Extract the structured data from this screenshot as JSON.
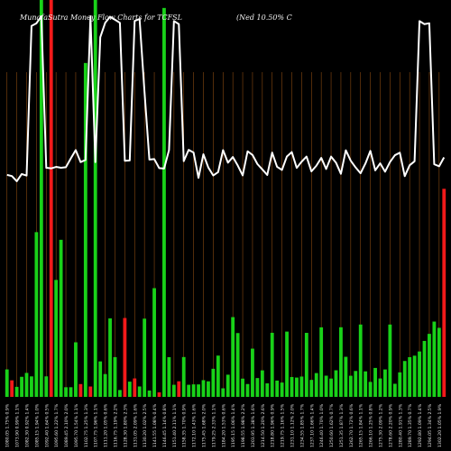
{
  "chart_data": {
    "type": "bar",
    "title_left": "MunafaSutra  Money Flow  Charts for TCFSL",
    "title_right": "(Ned 10.50% C",
    "bar_colors": {
      "green": "#19d219",
      "red": "#f21a1a"
    },
    "line_color": "#ffffff",
    "grid_color": "#8a4a10",
    "background": "#000000",
    "flow_ylim": [
      0,
      100
    ],
    "price_ylim": [
      0,
      100
    ],
    "categories": [
      "2024-02-28",
      "2024-02-29",
      "2024-03-01",
      "2024-03-04",
      "2024-03-05",
      "2024-03-06",
      "2024-03-07",
      "2024-03-08",
      "2024-03-11",
      "2024-03-12",
      "2024-03-13",
      "2024-03-14",
      "2024-03-15",
      "2024-03-18",
      "2024-03-19",
      "2024-03-20",
      "2024-03-21",
      "2024-03-22",
      "2024-03-25",
      "2024-03-26",
      "2024-03-27",
      "2024-03-28",
      "2024-04-01",
      "2024-04-02",
      "2024-04-03",
      "2024-04-04",
      "2024-04-05",
      "2024-04-08",
      "2024-04-09",
      "2024-04-10",
      "2024-04-11",
      "2024-04-12",
      "2024-04-15",
      "2024-04-16",
      "2024-04-18",
      "2024-04-19",
      "2024-04-22",
      "2024-04-23",
      "2024-04-24",
      "2024-04-25",
      "2024-04-26",
      "2024-04-29",
      "2024-04-30",
      "2024-05-02",
      "2024-05-03",
      "2024-05-06",
      "2024-05-07",
      "2024-05-08",
      "2024-05-09",
      "2024-05-10",
      "2024-05-13",
      "2024-05-14",
      "2024-05-15",
      "2024-05-16",
      "2024-05-17",
      "2024-05-20",
      "2024-05-21",
      "2024-05-22",
      "2024-05-23",
      "2024-05-24",
      "2024-05-27",
      "2024-05-28",
      "2024-05-29",
      "2024-05-30",
      "2024-05-31",
      "2024-06-03",
      "2024-06-04",
      "2024-06-05",
      "2024-06-06",
      "2024-06-07",
      "2024-06-10",
      "2024-06-11",
      "2024-06-12",
      "2024-06-13",
      "2024-06-14",
      "2024-06-18",
      "2024-06-19",
      "2024-06-20",
      "2024-06-21",
      "2024-06-24",
      "2024-06-25",
      "2024-06-26",
      "2024-06-27",
      "2024-06-28",
      "2024-07-01",
      "2024-07-02",
      "2024-07-03",
      "2024-07-04",
      "2024-07-05",
      "2024-07-08"
    ],
    "x_tick_labels": [
      "1080.05 1.75% 0.9%",
      "1075.50 1.23% 1.8%",
      "1073.90 0.99% 1.1%",
      "1080.45 1.39% 0.8%",
      "1082.30 0.92% 1.4%",
      "1088.95 2.26% 1.9%",
      "1085.15 1.94% 1.0%",
      "1086.45 1.57% 2.7%",
      "1092.40 1.64% 0.5%",
      "1104.90 2.04% 1.9%",
      "1095.60 1.22% 1.7%",
      "1099.85 1.61% 1.2%",
      "1089.45 2.10% 2.0%",
      "1090.20 0.93% 0.7%",
      "1095.70 1.54% 1.1%",
      "1097.15 0.94% 1.9%",
      "1102.75 1.25% 1.3%",
      "1098.85 1.00% 1.6%",
      "1107.75 1.96% 1.1%",
      "1108.55 1.27% 1.8%",
      "1111.20 1.05% 0.6%",
      "1118.45 2.31% 1.5%",
      "1116.75 1.19% 2.2%",
      "1121.50 1.86% 1.4%",
      "1128.30 1.80% 2.3%",
      "1125.10 1.60% 0.7%",
      "1131.05 2.09% 1.6%",
      "1133.80 1.69% 1.0%",
      "1130.20 1.02% 2.5%",
      "1138.75 1.24% 1.2%",
      "1141.55 1.08% 0.4%",
      "1149.10 1.21% 2.0%",
      "1146.45 1.14% 0.8%",
      "1154.95 1.04% 1.5%",
      "1151.40 2.11% 1.1%",
      "1163.80 1.25% 2.4%",
      "1158.35 1.70% 0.9%",
      "1166.50 1.27% 1.3%",
      "1172.10 1.43% 1.6%",
      "1169.35 1.13% 0.7%",
      "1175.45 1.68% 2.0%",
      "1181.70 1.74% 1.5%",
      "1179.25 2.33% 1.1%",
      "1186.55 2.25% 1.7%",
      "1184.20 1.53% 0.6%",
      "1190.35 1.48% 2.1%",
      "1195.15 1.06% 1.4%",
      "1193.60 1.71% 1.2%",
      "1198.55 1.98% 2.2%",
      "1205.90 1.04% 0.8%",
      "1203.95 1.38% 1.6%",
      "1210.35 1.77% 1.0%",
      "1214.50 1.20% 2.6%",
      "1212.15 1.86% 1.3%",
      "1218.80 1.96% 0.9%",
      "1222.05 1.11% 1.8%",
      "1219.75 1.16% 1.5%",
      "1226.80 1.44% 0.5%",
      "1231.10 1.12% 2.0%",
      "1228.65 1.37% 1.2%",
      "1234.55 1.85% 1.7%",
      "1239.30 1.41% 0.9%",
      "1237.10 1.66% 1.4%",
      "1242.25 1.76% 2.3%",
      "1246.40 1.70% 1.0%",
      "1244.95 1.13% 1.6%",
      "1250.60 1.62% 0.7%",
      "1253.85 1.45% 1.9%",
      "1251.35 1.87% 1.3%",
      "1257.40 1.19% 2.1%",
      "1262.70 1.72% 0.6%",
      "1259.95 1.78% 1.5%",
      "1265.15 1.84% 1.1%",
      "1268.45 1.30% 2.4%",
      "1266.10 1.25% 0.8%",
      "1271.85 1.17% 1.7%",
      "1275.30 2.09% 1.2%",
      "1273.05 1.55% 2.0%",
      "1278.60 2.20% 0.9%",
      "1282.95 1.18% 1.6%",
      "1280.40 1.91% 1.3%",
      "1286.25 1.47% 2.2%",
      "1289.70 1.35% 0.7%",
      "1287.15 1.82% 1.8%",
      "1292.80 1.09% 1.4%",
      "1296.35 1.31% 1.0%",
      "1294.05 1.34% 2.5%",
      "1299.45 1.59% 1.2%",
      "1302.20 1.05% 1.9%",
      "1308.60 3.69% 1.1%"
    ],
    "series": [
      {
        "values": [
          6.92,
          4.17,
          2.53,
          5.06,
          6.04,
          5.16,
          41.51,
          100,
          5.17,
          100,
          29.47,
          39.58,
          2.43,
          2.43,
          13.75,
          3.23,
          84.13,
          2.61,
          100,
          8.94,
          5.75,
          19.78,
          10.02,
          1.73,
          19.88,
          3.84,
          4.65,
          2.62,
          19.71,
          1.6,
          27.39,
          1.14,
          97.99,
          10.01,
          3.05,
          3.93,
          10.04,
          3.05,
          3.15,
          3.14,
          4.21,
          3.92,
          7.08,
          10.4,
          2.16,
          5.59,
          20.1,
          16.08,
          4.6,
          3.24,
          12.15,
          4.74,
          6.68,
          3.41,
          16.15,
          4.11,
          3.61,
          16.45,
          5.01,
          4.87,
          5.12,
          16.13,
          4.28,
          6.0,
          17.52,
          5.34,
          4.62,
          6.7,
          17.54,
          10.1,
          5.32,
          6.53,
          18.23,
          6.43,
          3.78,
          7.29,
          4.64,
          6.91,
          18.23,
          3.3,
          6.18,
          9.04,
          10.01,
          10.38,
          11.44,
          14.1,
          15.88,
          18.97,
          17.4,
          52.43
        ],
        "directions": [
          "up",
          "down",
          "up",
          "up",
          "up",
          "up",
          "up",
          "up",
          "up",
          "down",
          "up",
          "up",
          "up",
          "up",
          "up",
          "down",
          "up",
          "down",
          "up",
          "up",
          "up",
          "up",
          "up",
          "up",
          "down",
          "up",
          "down",
          "up",
          "up",
          "up",
          "up",
          "down",
          "up",
          "up",
          "up",
          "down",
          "up",
          "up",
          "up",
          "up",
          "up",
          "up",
          "up",
          "up",
          "up",
          "up",
          "up",
          "up",
          "up",
          "up",
          "up",
          "up",
          "up",
          "up",
          "up",
          "up",
          "up",
          "up",
          "up",
          "up",
          "up",
          "up",
          "up",
          "up",
          "up",
          "up",
          "up",
          "up",
          "up",
          "up",
          "up",
          "up",
          "up",
          "up",
          "up",
          "up",
          "up",
          "up",
          "up",
          "up",
          "up",
          "up",
          "up",
          "up",
          "up",
          "up",
          "up",
          "up",
          "up",
          "down"
        ]
      },
      {
        "values": [
          58.33,
          58.01,
          56.64,
          58.54,
          58.14,
          97.44,
          98.14,
          100,
          60.18,
          60.03,
          60.42,
          60.18,
          60.33,
          62.64,
          64.83,
          61.68,
          62.24,
          100,
          61.68,
          94.49,
          98.28,
          99.87,
          99.08,
          98.27,
          62.03,
          62.11,
          98.77,
          99.29,
          80.27,
          62.34,
          62.46,
          60.11,
          59.99,
          64.83,
          98.74,
          97.92,
          61.93,
          64.89,
          64.18,
          57.55,
          63.75,
          60.26,
          58.17,
          59.04,
          64.83,
          61.53,
          63.02,
          60.77,
          58.18,
          64.52,
          63.56,
          61.17,
          59.75,
          58.29,
          64.18,
          60.44,
          59.62,
          63.16,
          64.31,
          60.17,
          61.79,
          63.14,
          59.24,
          60.72,
          62.78,
          59.88,
          63.13,
          61.53,
          58.61,
          64.79,
          62.04,
          60.27,
          58.74,
          61.32,
          64.63,
          59.52,
          61.35,
          59.16,
          61.72,
          63.49,
          64.15,
          57.99,
          60.85,
          61.89,
          98.72,
          97.93,
          98.15,
          61.11,
          60.58,
          62.91
        ]
      }
    ]
  }
}
